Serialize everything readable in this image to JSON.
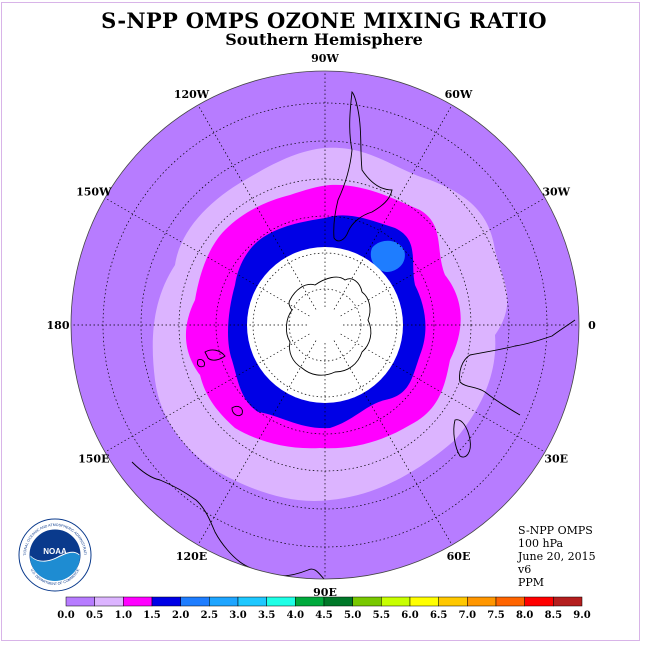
{
  "title": "S-NPP OMPS OZONE MIXING RATIO",
  "subtitle": "Southern Hemisphere",
  "longitude_labels": [
    {
      "text": "90W",
      "lon": -90
    },
    {
      "text": "60W",
      "lon": -60
    },
    {
      "text": "30W",
      "lon": -30
    },
    {
      "text": "0",
      "lon": 0
    },
    {
      "text": "30E",
      "lon": 30
    },
    {
      "text": "60E",
      "lon": 60
    },
    {
      "text": "90E",
      "lon": 90
    },
    {
      "text": "120E",
      "lon": 120
    },
    {
      "text": "150E",
      "lon": 150
    },
    {
      "text": "180",
      "lon": 180
    },
    {
      "text": "150W",
      "lon": -150
    },
    {
      "text": "120W",
      "lon": -120
    }
  ],
  "info": {
    "instrument": "S-NPP OMPS",
    "level": "100 hPa",
    "date": "June 20, 2015",
    "version": "v6",
    "units": "PPM"
  },
  "logo": {
    "text": "NOAA",
    "ring_text": "NATIONAL OCEANIC AND ATMOSPHERIC ADMINISTRATION",
    "ring_text_bottom": "U.S. DEPARTMENT OF COMMERCE"
  },
  "colorbar": {
    "ticks": [
      "0.0",
      "0.5",
      "1.0",
      "1.5",
      "2.0",
      "2.5",
      "3.0",
      "3.5",
      "4.0",
      "4.5",
      "5.0",
      "5.5",
      "6.0",
      "6.5",
      "7.0",
      "7.5",
      "8.0",
      "8.5",
      "9.0"
    ],
    "colors": [
      "#b77cff",
      "#dcb4ff",
      "#ff00ff",
      "#0000e6",
      "#1e7dff",
      "#1ea5ff",
      "#1ec8ff",
      "#1effe6",
      "#00aa3c",
      "#007828",
      "#78c800",
      "#c8ff00",
      "#ffff00",
      "#ffc800",
      "#ff9600",
      "#ff6400",
      "#ff0000",
      "#b41e1e"
    ]
  },
  "map_data": {
    "projection": "south-polar-stereographic",
    "contour_levels_ppm": {
      "background": "0.0-0.5",
      "light_band": "0.5-1.0",
      "magenta_band": "1.0-1.5",
      "blue_band": "1.5-2.0",
      "blue_patch": "2.0-2.5",
      "missing_data_polar_cap": true
    }
  }
}
